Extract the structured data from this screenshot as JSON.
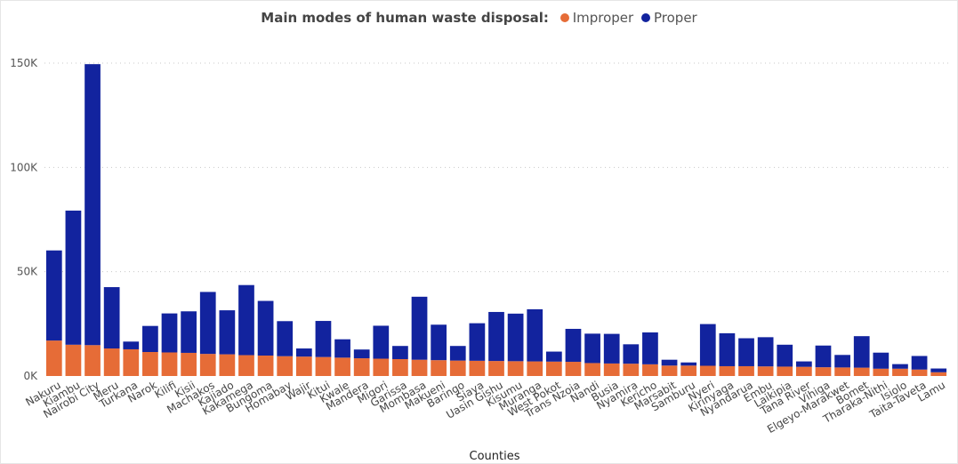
{
  "chart_data": {
    "type": "bar",
    "stacked": true,
    "title": "Main modes of human waste disposal:",
    "xlabel": "Counties",
    "ylabel": "",
    "ylim": [
      0,
      150000
    ],
    "yticks": [
      0,
      50000,
      100000,
      150000
    ],
    "ytick_labels": [
      "0K",
      "50K",
      "100K",
      "150K"
    ],
    "grid": true,
    "legend_position": "top",
    "categories": [
      "Nakuru",
      "Kiambu",
      "Nairobi City",
      "Meru",
      "Turkana",
      "Narok",
      "Kilifi",
      "Kisii",
      "Machakos",
      "Kajiado",
      "Kakamega",
      "Bungoma",
      "Homabay",
      "Wajir",
      "Kitui",
      "Kwale",
      "Mandera",
      "Migori",
      "Garissa",
      "Mombasa",
      "Makueni",
      "Baringo",
      "Siaya",
      "Uasin Gishu",
      "Kisumu",
      "Muranga",
      "West Pokot",
      "Trans Nzoia",
      "Nandi",
      "Busia",
      "Nyamira",
      "Kericho",
      "Marsabit",
      "Samburu",
      "Nyeri",
      "Kirinyaga",
      "Nyandarua",
      "Embu",
      "Laikipia",
      "Tana River",
      "Vihiga",
      "Elgeyo-Marakwet",
      "Bomet",
      "Tharaka-Nithi",
      "Isiolo",
      "Taita-Taveta",
      "Lamu"
    ],
    "series": [
      {
        "name": "Improper",
        "color": "#E66C37",
        "values": [
          17000,
          15000,
          14800,
          13200,
          12800,
          11500,
          11300,
          11100,
          10600,
          10400,
          10000,
          9800,
          9500,
          9300,
          9100,
          8800,
          8500,
          8300,
          8100,
          7800,
          7600,
          7400,
          7300,
          7200,
          7100,
          7000,
          6900,
          6800,
          6200,
          6000,
          5900,
          5600,
          5000,
          5000,
          4900,
          4700,
          4700,
          4600,
          4500,
          4400,
          4200,
          4100,
          4000,
          3500,
          3500,
          3100,
          1800
        ]
      },
      {
        "name": "Proper",
        "color": "#12239E",
        "values": [
          43200,
          64300,
          134700,
          29400,
          3700,
          12500,
          18700,
          19900,
          29700,
          21100,
          33600,
          26200,
          16800,
          3900,
          17300,
          8800,
          4200,
          15800,
          6300,
          30200,
          17000,
          7000,
          18000,
          23500,
          22800,
          25000,
          4800,
          15800,
          14100,
          14200,
          9300,
          15300,
          2800,
          1500,
          20000,
          15800,
          13400,
          14000,
          10500,
          2600,
          10400,
          6000,
          15100,
          7700,
          2200,
          6500,
          1800
        ]
      }
    ]
  }
}
